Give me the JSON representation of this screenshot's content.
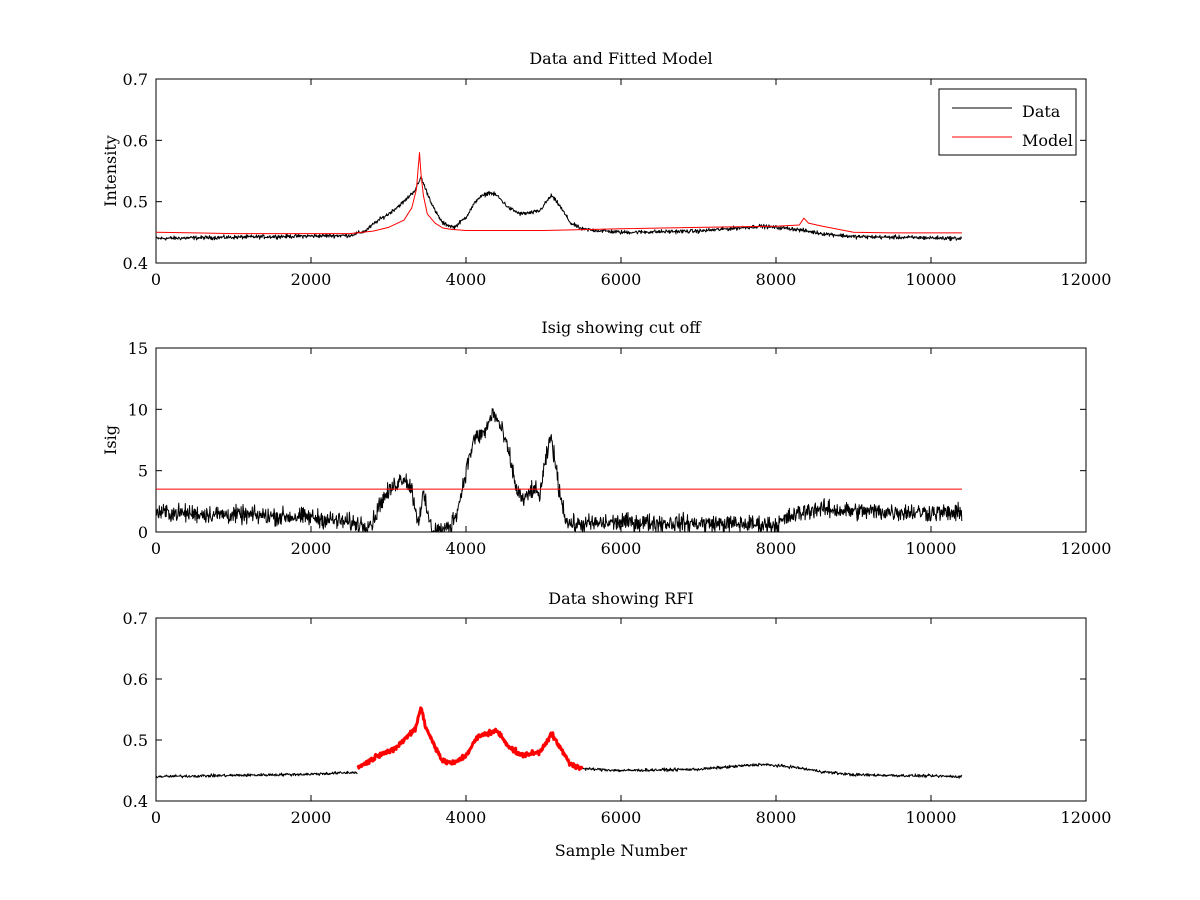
{
  "colors": {
    "data": "#000000",
    "model": "#ff0000",
    "background": "#ffffff"
  },
  "chart_data": [
    {
      "type": "line",
      "title": "Data and Fitted Model",
      "xlabel": "",
      "ylabel": "Intensity",
      "xlim": [
        0,
        12000
      ],
      "ylim": [
        0.4,
        0.7
      ],
      "xticks": [
        0,
        2000,
        4000,
        6000,
        8000,
        10000,
        12000
      ],
      "yticks": [
        0.4,
        0.5,
        0.6,
        0.7
      ],
      "xtick_labels": [
        "0",
        "2000",
        "4000",
        "6000",
        "8000",
        "10000",
        "12000"
      ],
      "ytick_labels": [
        "0.4",
        "0.5",
        "0.6",
        "0.7"
      ],
      "legend": {
        "position": "top-right",
        "entries": [
          "Data",
          "Model"
        ]
      },
      "series": [
        {
          "name": "Data",
          "color": "#000000",
          "noise": 0.004,
          "x": [
            0,
            500,
            1000,
            1500,
            2000,
            2500,
            2700,
            2850,
            3000,
            3200,
            3350,
            3420,
            3480,
            3600,
            3700,
            3850,
            4000,
            4150,
            4300,
            4400,
            4550,
            4700,
            4850,
            4950,
            5100,
            5200,
            5350,
            5500,
            6000,
            7000,
            7800,
            8200,
            8600,
            9000,
            9500,
            10000,
            10400
          ],
          "y": [
            0.44,
            0.441,
            0.442,
            0.443,
            0.444,
            0.445,
            0.452,
            0.468,
            0.48,
            0.5,
            0.52,
            0.54,
            0.52,
            0.485,
            0.465,
            0.458,
            0.475,
            0.505,
            0.515,
            0.51,
            0.49,
            0.48,
            0.482,
            0.485,
            0.51,
            0.495,
            0.465,
            0.455,
            0.45,
            0.452,
            0.46,
            0.456,
            0.448,
            0.443,
            0.442,
            0.441,
            0.44
          ]
        },
        {
          "name": "Model",
          "color": "#ff0000",
          "noise": 0,
          "x": [
            0,
            500,
            1000,
            1500,
            2000,
            2500,
            2800,
            3000,
            3200,
            3300,
            3360,
            3400,
            3420,
            3450,
            3500,
            3600,
            3700,
            3800,
            4000,
            5000,
            6000,
            7000,
            8000,
            8300,
            8360,
            8420,
            8600,
            8800,
            9000,
            9500,
            10000,
            10400
          ],
          "y": [
            0.45,
            0.449,
            0.448,
            0.448,
            0.448,
            0.448,
            0.452,
            0.458,
            0.47,
            0.49,
            0.52,
            0.58,
            0.545,
            0.51,
            0.48,
            0.465,
            0.457,
            0.455,
            0.453,
            0.453,
            0.456,
            0.458,
            0.46,
            0.462,
            0.473,
            0.465,
            0.46,
            0.455,
            0.45,
            0.449,
            0.449,
            0.449
          ]
        }
      ]
    },
    {
      "type": "line",
      "title": "Isig showing cut off",
      "xlabel": "",
      "ylabel": "Isig",
      "xlim": [
        0,
        12000
      ],
      "ylim": [
        0,
        15
      ],
      "xticks": [
        0,
        2000,
        4000,
        6000,
        8000,
        10000,
        12000
      ],
      "yticks": [
        0,
        5,
        10,
        15
      ],
      "xtick_labels": [
        "0",
        "2000",
        "4000",
        "6000",
        "8000",
        "10000",
        "12000"
      ],
      "ytick_labels": [
        "0",
        "5",
        "10",
        "15"
      ],
      "series": [
        {
          "color": "#000000",
          "noise": 0.9,
          "x": [
            0,
            500,
            1000,
            2000,
            2700,
            2800,
            2900,
            3000,
            3100,
            3200,
            3300,
            3380,
            3450,
            3550,
            3700,
            3800,
            3900,
            4000,
            4100,
            4250,
            4350,
            4450,
            4550,
            4650,
            4750,
            4850,
            4950,
            5050,
            5100,
            5200,
            5300,
            5400,
            6000,
            7000,
            8000,
            8200,
            8500,
            9000,
            10000,
            10400
          ],
          "y": [
            1.6,
            1.5,
            1.4,
            1.2,
            0.6,
            0.8,
            2.5,
            3.2,
            4.0,
            4.5,
            3.5,
            0.8,
            3.0,
            0.3,
            0.1,
            0.5,
            2.0,
            5.0,
            7.5,
            8.2,
            9.8,
            8.5,
            6.5,
            3.5,
            2.5,
            3.5,
            3.0,
            6.5,
            7.8,
            3.5,
            0.8,
            0.6,
            0.8,
            0.7,
            0.6,
            1.3,
            1.9,
            1.7,
            1.6,
            1.5
          ]
        },
        {
          "color": "#ff0000",
          "noise": 0,
          "x": [
            0,
            10400
          ],
          "y": [
            3.5,
            3.5
          ]
        }
      ]
    },
    {
      "type": "line",
      "title": "Data showing RFI",
      "xlabel": "Sample Number",
      "ylabel": "",
      "xlim": [
        0,
        12000
      ],
      "ylim": [
        0.4,
        0.7
      ],
      "xticks": [
        0,
        2000,
        4000,
        6000,
        8000,
        10000,
        12000
      ],
      "yticks": [
        0.4,
        0.5,
        0.6,
        0.7
      ],
      "xtick_labels": [
        "0",
        "2000",
        "4000",
        "6000",
        "8000",
        "10000",
        "12000"
      ],
      "ytick_labels": [
        "0.4",
        "0.5",
        "0.6",
        "0.7"
      ],
      "series": [
        {
          "color": "#000000",
          "noise": 0.003,
          "x": [
            0,
            500,
            1000,
            1500,
            2000,
            2600,
            5500,
            6000,
            7000,
            7800,
            8200,
            8600,
            9000,
            9500,
            10000,
            10400
          ],
          "y": [
            0.44,
            0.441,
            0.442,
            0.443,
            0.444,
            0.447,
            0.453,
            0.45,
            0.452,
            0.46,
            0.456,
            0.448,
            0.443,
            0.442,
            0.441,
            0.44
          ],
          "gap": [
            2600,
            5500
          ]
        },
        {
          "color": "#ff0000",
          "noise": 0.005,
          "thick": true,
          "x": [
            2600,
            2750,
            2900,
            3050,
            3200,
            3350,
            3420,
            3480,
            3600,
            3700,
            3850,
            4000,
            4150,
            4300,
            4400,
            4550,
            4700,
            4850,
            4950,
            5100,
            5200,
            5350,
            5500
          ],
          "y": [
            0.455,
            0.465,
            0.478,
            0.482,
            0.5,
            0.52,
            0.555,
            0.52,
            0.49,
            0.465,
            0.462,
            0.475,
            0.505,
            0.512,
            0.515,
            0.49,
            0.475,
            0.478,
            0.48,
            0.51,
            0.49,
            0.46,
            0.452
          ]
        }
      ]
    }
  ]
}
